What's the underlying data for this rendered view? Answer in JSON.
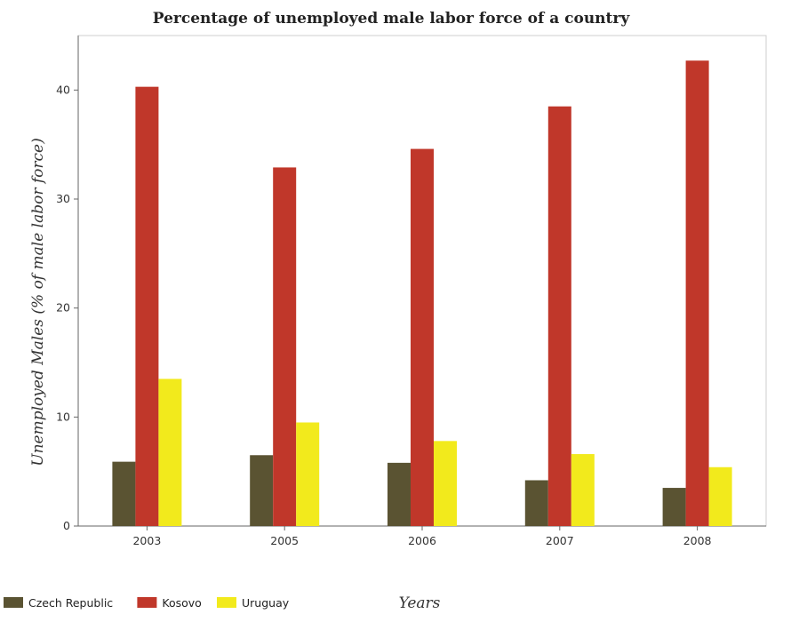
{
  "chart_data": {
    "type": "bar",
    "title": "Percentage of unemployed male labor force of a country",
    "xlabel": "Years",
    "ylabel": "Unemployed Males (% of male labor force)",
    "categories": [
      "2003",
      "2005",
      "2006",
      "2007",
      "2008"
    ],
    "ylim": [
      0,
      45
    ],
    "yticks": [
      0,
      10,
      20,
      30,
      40
    ],
    "ytick_labels": [
      "0",
      "10",
      "20",
      "30",
      "40"
    ],
    "grid": false,
    "legend_position": "bottom-left",
    "series": [
      {
        "name": "Czech Republic",
        "color": "#5a5332",
        "values": [
          5.9,
          6.5,
          5.8,
          4.2,
          3.5
        ]
      },
      {
        "name": "Kosovo",
        "color": "#c0372a",
        "values": [
          40.3,
          32.9,
          34.6,
          38.5,
          42.7
        ]
      },
      {
        "name": "Uruguay",
        "color": "#f2ea1c",
        "values": [
          13.5,
          9.5,
          7.8,
          6.6,
          5.4
        ]
      }
    ]
  }
}
